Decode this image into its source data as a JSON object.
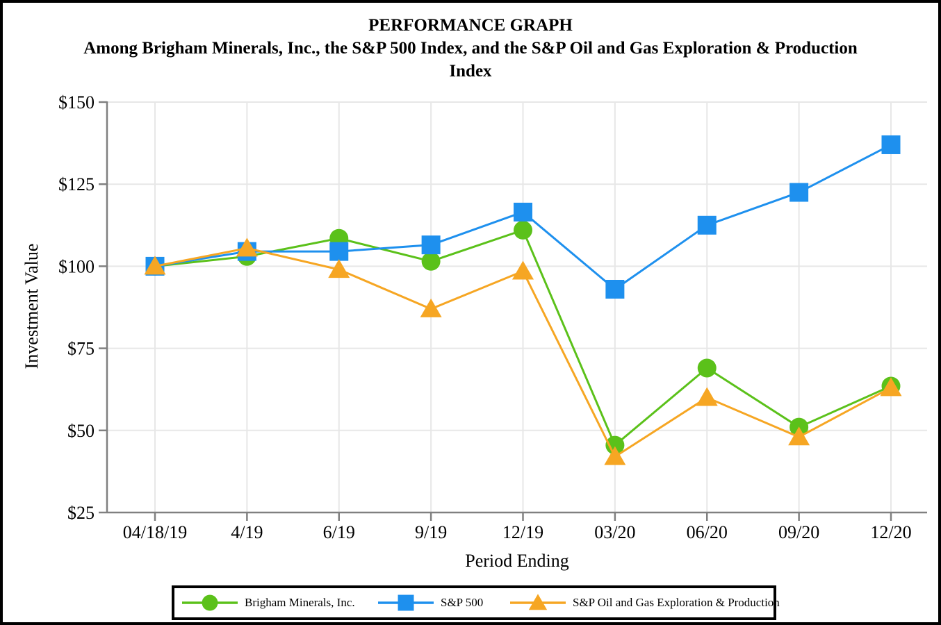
{
  "header": {
    "title": "PERFORMANCE GRAPH",
    "subtitle_line1": "Among Brigham Minerals, Inc., the S&P 500 Index, and the S&P Oil and Gas Exploration & Production",
    "subtitle_line2": "Index"
  },
  "chart_data": {
    "type": "line",
    "title": "PERFORMANCE GRAPH",
    "subtitle": "Among Brigham Minerals, Inc., the S&P 500 Index, and the S&P Oil and Gas Exploration & Production Index",
    "xlabel": "Period Ending",
    "ylabel": "Investment Value",
    "categories": [
      "04/18/19",
      "4/19",
      "6/19",
      "9/19",
      "12/19",
      "03/20",
      "06/20",
      "09/20",
      "12/20"
    ],
    "y_ticks": [
      25,
      50,
      75,
      100,
      125,
      150
    ],
    "y_tick_labels": [
      "$25",
      "$50",
      "$75",
      "$100",
      "$125",
      "$150"
    ],
    "ylim": [
      25,
      150
    ],
    "grid": true,
    "legend_position": "bottom",
    "series": [
      {
        "name": "Brigham Minerals, Inc.",
        "marker": "circle",
        "color": "#5bc11a",
        "values": [
          100,
          103,
          108.5,
          101.5,
          111,
          45.5,
          69,
          51,
          63.5
        ]
      },
      {
        "name": "S&P 500",
        "marker": "square",
        "color": "#1e90ee",
        "values": [
          100,
          104.5,
          104.5,
          106.5,
          116.5,
          93,
          112.5,
          122.5,
          137
        ]
      },
      {
        "name": "S&P Oil and Gas Exploration & Production",
        "marker": "triangle",
        "color": "#f6a623",
        "values": [
          100,
          105.5,
          99,
          87,
          98.5,
          42,
          60,
          48,
          63
        ]
      }
    ],
    "colors": {
      "gridline": "#e7e7e7",
      "axis": "#808080",
      "text": "#000000",
      "background": "#ffffff",
      "border": "#000000"
    }
  }
}
